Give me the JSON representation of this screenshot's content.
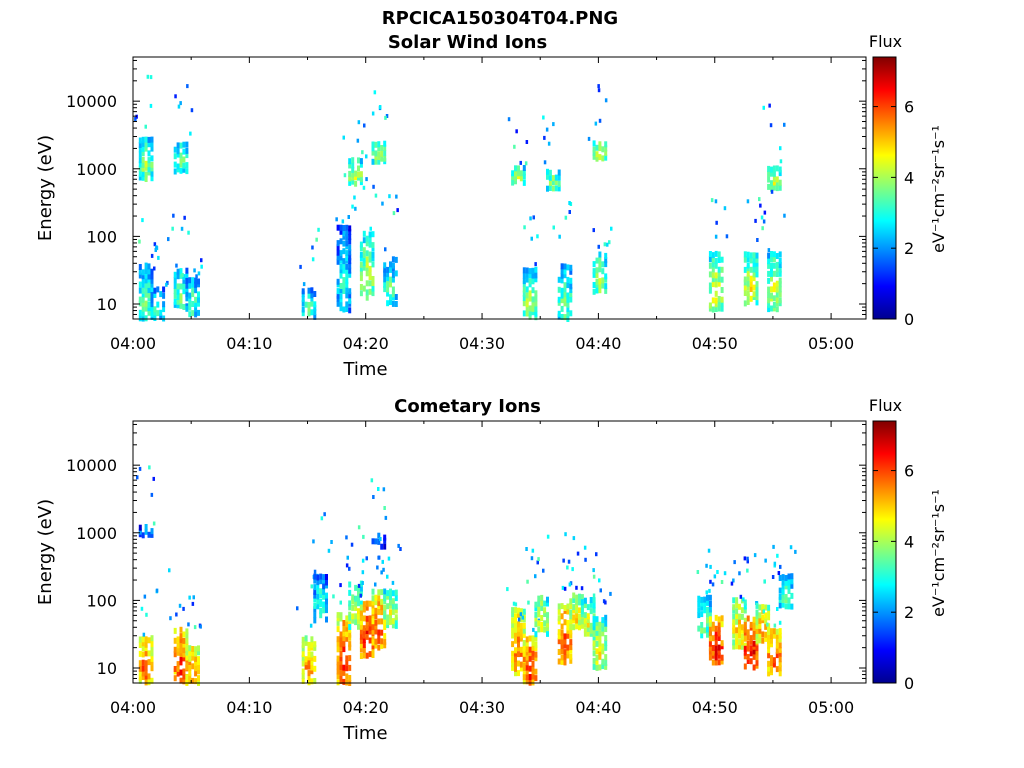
{
  "figure_title": "RPCICA150304T04.PNG",
  "colors": {
    "colormap": [
      "#00008f",
      "#0000ff",
      "#0080ff",
      "#00ffff",
      "#80ff80",
      "#ffff00",
      "#ff8000",
      "#ff0000",
      "#800000"
    ],
    "axes": "#000000",
    "background": "#ffffff"
  },
  "chart_data": [
    {
      "type": "heatmap",
      "title": "Solar Wind Ions",
      "xlabel": "Time",
      "ylabel": "Energy (eV)",
      "yscale": "log",
      "xlim": [
        "04:00",
        "05:03"
      ],
      "ylim": [
        6,
        45000
      ],
      "xticks": [
        "04:00",
        "04:10",
        "04:20",
        "04:30",
        "04:40",
        "04:50",
        "05:00"
      ],
      "yticks": [
        "10",
        "100",
        "1000",
        "10000"
      ],
      "colorbar": {
        "label": "Flux",
        "units": "eV⁻¹cm⁻²sr⁻¹s⁻¹",
        "range": [
          0,
          7.4
        ],
        "ticks": [
          "0",
          "2",
          "4",
          "6"
        ]
      },
      "grid": false,
      "bursts": [
        {
          "t": "04:01",
          "emin": 6,
          "emax": 40,
          "level": 3.8
        },
        {
          "t": "04:01",
          "emin": 700,
          "emax": 3000,
          "level": 4.0
        },
        {
          "t": "04:02",
          "emin": 6,
          "emax": 18,
          "level": 3.5
        },
        {
          "t": "04:04",
          "emin": 9,
          "emax": 35,
          "level": 3.8
        },
        {
          "t": "04:04",
          "emin": 900,
          "emax": 2500,
          "level": 3.7
        },
        {
          "t": "04:05",
          "emin": 7,
          "emax": 25,
          "level": 3.6
        },
        {
          "t": "04:15",
          "emin": 6,
          "emax": 18,
          "level": 3.6
        },
        {
          "t": "04:18",
          "emin": 8,
          "emax": 150,
          "level": 3.2
        },
        {
          "t": "04:19",
          "emin": 600,
          "emax": 1500,
          "level": 4.4
        },
        {
          "t": "04:20",
          "emin": 12,
          "emax": 120,
          "level": 4.4
        },
        {
          "t": "04:21",
          "emin": 1200,
          "emax": 2600,
          "level": 4.3
        },
        {
          "t": "04:22",
          "emin": 10,
          "emax": 50,
          "level": 3.6
        },
        {
          "t": "04:33",
          "emin": 600,
          "emax": 1200,
          "level": 4.2
        },
        {
          "t": "04:34",
          "emin": 6,
          "emax": 35,
          "level": 4.2
        },
        {
          "t": "04:36",
          "emin": 500,
          "emax": 1000,
          "level": 4.0
        },
        {
          "t": "04:37",
          "emin": 6,
          "emax": 40,
          "level": 3.8
        },
        {
          "t": "04:40",
          "emin": 15,
          "emax": 60,
          "level": 4.2
        },
        {
          "t": "04:40",
          "emin": 1400,
          "emax": 2600,
          "level": 4.4
        },
        {
          "t": "04:50",
          "emin": 8,
          "emax": 60,
          "level": 4.6
        },
        {
          "t": "04:53",
          "emin": 10,
          "emax": 60,
          "level": 4.6
        },
        {
          "t": "04:55",
          "emin": 500,
          "emax": 1100,
          "level": 4.4
        },
        {
          "t": "04:55",
          "emin": 8,
          "emax": 60,
          "level": 4.4
        }
      ]
    },
    {
      "type": "heatmap",
      "title": "Cometary Ions",
      "xlabel": "Time",
      "ylabel": "Energy (eV)",
      "yscale": "log",
      "xlim": [
        "04:00",
        "05:03"
      ],
      "ylim": [
        6,
        45000
      ],
      "xticks": [
        "04:00",
        "04:10",
        "04:20",
        "04:30",
        "04:40",
        "04:50",
        "05:00"
      ],
      "yticks": [
        "10",
        "100",
        "1000",
        "10000"
      ],
      "colorbar": {
        "label": "Flux",
        "units": "eV⁻¹cm⁻²sr⁻¹s⁻¹",
        "range": [
          0,
          7.4
        ],
        "ticks": [
          "0",
          "2",
          "4",
          "6"
        ]
      },
      "grid": false,
      "bursts": [
        {
          "t": "04:01",
          "emin": 6,
          "emax": 30,
          "level": 6.0
        },
        {
          "t": "04:01",
          "emin": 900,
          "emax": 1300,
          "level": 2.6
        },
        {
          "t": "04:04",
          "emin": 6,
          "emax": 40,
          "level": 6.3
        },
        {
          "t": "04:05",
          "emin": 6,
          "emax": 22,
          "level": 5.8
        },
        {
          "t": "04:15",
          "emin": 6,
          "emax": 30,
          "level": 5.6
        },
        {
          "t": "04:16",
          "emin": 50,
          "emax": 250,
          "level": 3.4
        },
        {
          "t": "04:18",
          "emin": 6,
          "emax": 70,
          "level": 6.2
        },
        {
          "t": "04:19",
          "emin": 40,
          "emax": 200,
          "level": 4.5
        },
        {
          "t": "04:20",
          "emin": 15,
          "emax": 100,
          "level": 6.4
        },
        {
          "t": "04:21",
          "emin": 20,
          "emax": 150,
          "level": 6.0
        },
        {
          "t": "04:21",
          "emin": 600,
          "emax": 1000,
          "level": 2.4
        },
        {
          "t": "04:22",
          "emin": 40,
          "emax": 150,
          "level": 4.6
        },
        {
          "t": "04:33",
          "emin": 8,
          "emax": 80,
          "level": 5.8
        },
        {
          "t": "04:34",
          "emin": 6,
          "emax": 30,
          "level": 6.4
        },
        {
          "t": "04:35",
          "emin": 30,
          "emax": 120,
          "level": 4.6
        },
        {
          "t": "04:37",
          "emin": 12,
          "emax": 90,
          "level": 6.2
        },
        {
          "t": "04:38",
          "emin": 40,
          "emax": 130,
          "level": 5.0
        },
        {
          "t": "04:39",
          "emin": 30,
          "emax": 110,
          "level": 4.6
        },
        {
          "t": "04:40",
          "emin": 10,
          "emax": 60,
          "level": 4.8
        },
        {
          "t": "04:49",
          "emin": 30,
          "emax": 120,
          "level": 4.0
        },
        {
          "t": "04:50",
          "emin": 12,
          "emax": 60,
          "level": 6.6
        },
        {
          "t": "04:52",
          "emin": 20,
          "emax": 110,
          "level": 5.2
        },
        {
          "t": "04:53",
          "emin": 10,
          "emax": 60,
          "level": 6.8
        },
        {
          "t": "04:54",
          "emin": 25,
          "emax": 90,
          "level": 5.5
        },
        {
          "t": "04:55",
          "emin": 8,
          "emax": 40,
          "level": 6.2
        },
        {
          "t": "04:56",
          "emin": 80,
          "emax": 250,
          "level": 3.6
        }
      ]
    }
  ]
}
